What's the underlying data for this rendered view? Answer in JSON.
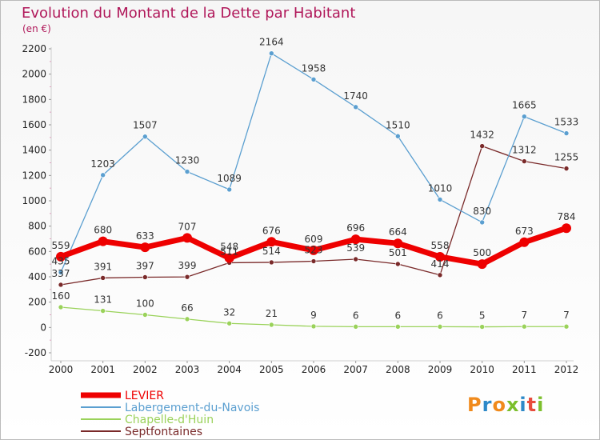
{
  "title": "Evolution du Montant de la Dette par Habitant",
  "unit": "(en €)",
  "brand": "Proxiti",
  "brand_colors": [
    "#f08a1c",
    "#2d89c8",
    "#f08a1c",
    "#7cbf2c",
    "#2d89c8",
    "#e84c3d",
    "#7cbf2c"
  ],
  "chart_data": {
    "type": "line",
    "x": [
      "2000",
      "2001",
      "2002",
      "2003",
      "2004",
      "2005",
      "2006",
      "2007",
      "2008",
      "2009",
      "2010",
      "2011",
      "2012"
    ],
    "ylim": [
      -200,
      2200
    ],
    "yticks": [
      -200,
      0,
      200,
      400,
      600,
      800,
      1000,
      1200,
      1400,
      1600,
      1800,
      2000,
      2200
    ],
    "grid": false,
    "legend_position": "bottom-left",
    "series": [
      {
        "name": "LEVIER",
        "color": "#ee0000",
        "values": [
          559,
          680,
          633,
          707,
          548,
          676,
          609,
          696,
          664,
          558,
          500,
          673,
          784
        ]
      },
      {
        "name": "Labergement-du-Navois",
        "color": "#5b9fd0",
        "values": [
          435,
          1203,
          1507,
          1230,
          1089,
          2164,
          1958,
          1740,
          1510,
          1010,
          830,
          1665,
          1533
        ]
      },
      {
        "name": "Chapelle-d'Huin",
        "color": "#9ad25a",
        "values": [
          160,
          131,
          100,
          66,
          32,
          21,
          9,
          6,
          6,
          6,
          5,
          7,
          7
        ]
      },
      {
        "name": "Septfontaines",
        "color": "#7a2a2a",
        "values": [
          337,
          391,
          397,
          399,
          511,
          514,
          523,
          539,
          501,
          414,
          1432,
          1312,
          1255
        ]
      }
    ]
  }
}
